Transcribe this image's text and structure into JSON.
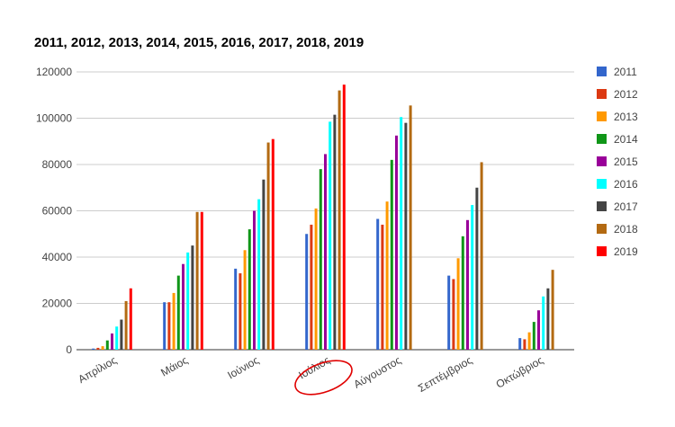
{
  "chart_data": {
    "type": "bar",
    "title": "2011, 2012, 2013, 2014, 2015, 2016, 2017, 2018, 2019",
    "xlabel": "",
    "ylabel": "",
    "ylim": [
      0,
      120000
    ],
    "yticks": [
      0,
      20000,
      40000,
      60000,
      80000,
      100000,
      120000
    ],
    "ytick_labels": [
      "0",
      "20000",
      "40000",
      "60000",
      "80000",
      "100000",
      "120000"
    ],
    "grid": true,
    "legend_position": "right",
    "categories": [
      "Απρίλιος",
      "Μάιος",
      "Ιούνιος",
      "Ιούλιος",
      "Αύγουστος",
      "Σεπτέμβριος",
      "Οκτώβριος"
    ],
    "highlighted_category": "Ιούλιος",
    "series": [
      {
        "name": "2011",
        "color": "#3366cc",
        "values": [
          500,
          20500,
          35000,
          50000,
          56500,
          32000,
          5000
        ]
      },
      {
        "name": "2012",
        "color": "#dc3912",
        "values": [
          800,
          20500,
          33000,
          54000,
          54000,
          30500,
          4500
        ]
      },
      {
        "name": "2013",
        "color": "#ff9900",
        "values": [
          1500,
          24500,
          43000,
          61000,
          64000,
          39500,
          7500
        ]
      },
      {
        "name": "2014",
        "color": "#109618",
        "values": [
          4000,
          32000,
          52000,
          78000,
          82000,
          49000,
          12000
        ]
      },
      {
        "name": "2015",
        "color": "#990099",
        "values": [
          7000,
          37000,
          60000,
          84500,
          92500,
          56000,
          17000
        ]
      },
      {
        "name": "2016",
        "color": "#00ffff",
        "values": [
          10000,
          42000,
          65000,
          98500,
          100500,
          62500,
          23000
        ]
      },
      {
        "name": "2017",
        "color": "#444444",
        "values": [
          13000,
          45000,
          73500,
          101500,
          98000,
          70000,
          26500
        ]
      },
      {
        "name": "2018",
        "color": "#b36a12",
        "values": [
          21000,
          59500,
          89500,
          112000,
          105500,
          81000,
          34500
        ]
      },
      {
        "name": "2019",
        "color": "#ff0000",
        "values": [
          26500,
          59500,
          91000,
          114500,
          null,
          null,
          null
        ]
      }
    ]
  },
  "colors": {
    "gridline": "#cccccc",
    "axis": "#333333",
    "label": "#444444",
    "highlight": "#e00000"
  }
}
